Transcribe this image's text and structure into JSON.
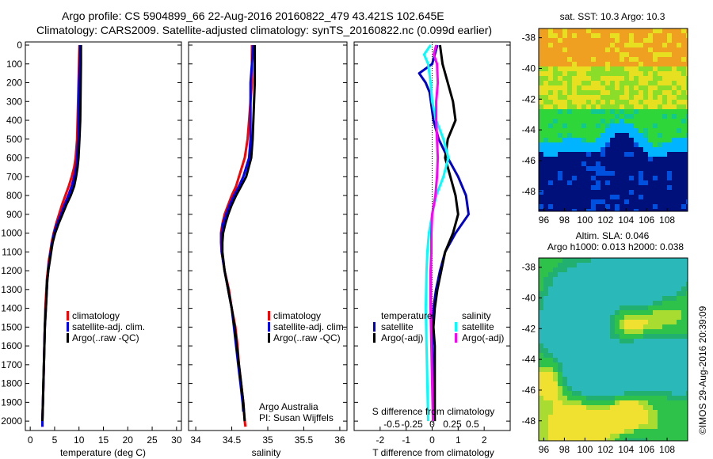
{
  "header": {
    "line1": "Argo profile: CS 5904899_66 22-Aug-2016 20160822_479 43.421S 102.645E",
    "line2": "Climatology: CARS2009. Satellite-adjusted climatology: synTS_20160822.nc (0.099d earlier)"
  },
  "chart_data": [
    {
      "type": "line",
      "name": "temperature-profile",
      "xlabel": "temperature (deg C)",
      "ylabel": "",
      "xlim": [
        -1,
        31
      ],
      "ylim": [
        2050,
        0
      ],
      "xticks": [
        0,
        5,
        10,
        15,
        20,
        25,
        30
      ],
      "yticks": [
        0,
        100,
        200,
        300,
        400,
        500,
        600,
        700,
        800,
        900,
        1000,
        1100,
        1200,
        1300,
        1400,
        1500,
        1600,
        1700,
        1800,
        1900,
        2000
      ],
      "legend": [
        "climatology",
        "satellite-adj. clim.",
        "Argo(..raw -QC)"
      ],
      "series": [
        {
          "name": "climatology",
          "color": "#ff0000",
          "depth": [
            0,
            100,
            200,
            300,
            400,
            500,
            600,
            650,
            700,
            750,
            800,
            850,
            900,
            950,
            1000,
            1050,
            1100,
            1150,
            1200,
            1250,
            1300,
            1400,
            1500,
            1600,
            1700,
            1800,
            1900,
            2000,
            2030
          ],
          "values": [
            10.1,
            10.0,
            9.9,
            9.8,
            9.7,
            9.6,
            9.3,
            9.0,
            8.5,
            7.9,
            7.2,
            6.5,
            5.9,
            5.3,
            4.8,
            4.4,
            4.1,
            3.8,
            3.6,
            3.4,
            3.3,
            3.1,
            3.0,
            2.9,
            2.8,
            2.7,
            2.6,
            2.5,
            2.5
          ]
        },
        {
          "name": "satellite-adj. clim.",
          "color": "#0000ff",
          "depth": [
            0,
            100,
            200,
            300,
            400,
            500,
            600,
            650,
            700,
            750,
            800,
            850,
            900,
            950,
            1000,
            1050,
            1100,
            1150,
            1200,
            1250,
            1300,
            1400,
            1500,
            1600,
            1700,
            1800,
            1900,
            2000,
            2030
          ],
          "values": [
            10.2,
            10.1,
            10.0,
            9.95,
            9.9,
            9.8,
            9.6,
            9.4,
            9.0,
            8.5,
            7.8,
            7.0,
            6.3,
            5.5,
            4.9,
            4.5,
            4.2,
            3.9,
            3.7,
            3.5,
            3.4,
            3.2,
            3.0,
            2.9,
            2.8,
            2.7,
            2.6,
            2.5,
            2.5
          ]
        },
        {
          "name": "Argo(..raw -QC)",
          "color": "#000000",
          "depth": [
            0,
            100,
            200,
            300,
            400,
            500,
            600,
            650,
            700,
            750,
            800,
            850,
            900,
            950,
            1000,
            1050,
            1100,
            1150,
            1200,
            1250,
            1300,
            1400,
            1500,
            1600,
            1700,
            1800,
            1900,
            2000
          ],
          "values": [
            10.4,
            10.4,
            10.35,
            10.3,
            10.25,
            10.1,
            9.9,
            9.7,
            9.4,
            9.0,
            8.3,
            7.4,
            6.6,
            5.8,
            5.1,
            4.6,
            4.3,
            4.0,
            3.7,
            3.5,
            3.4,
            3.2,
            3.0,
            2.9,
            2.8,
            2.7,
            2.6,
            2.5
          ]
        }
      ]
    },
    {
      "type": "line",
      "name": "salinity-profile",
      "xlabel": "salinity",
      "xlim": [
        33.9,
        36.1
      ],
      "ylim": [
        2050,
        0
      ],
      "xticks": [
        34,
        34.5,
        35,
        35.5,
        36
      ],
      "legend": [
        "climatology",
        "satellite-adj. clim.",
        "Argo(..raw -QC)"
      ],
      "annotation": [
        "Argo Australia",
        "PI: Susan Wijffels"
      ],
      "series": [
        {
          "name": "climatology",
          "color": "#ff0000",
          "depth": [
            0,
            100,
            200,
            300,
            400,
            500,
            600,
            700,
            750,
            800,
            850,
            900,
            950,
            1000,
            1050,
            1100,
            1200,
            1300,
            1400,
            1500,
            1600,
            1700,
            1800,
            1900,
            2000,
            2030
          ],
          "values": [
            34.78,
            34.78,
            34.78,
            34.76,
            34.74,
            34.72,
            34.68,
            34.6,
            34.56,
            34.5,
            34.45,
            34.4,
            34.37,
            34.35,
            34.35,
            34.36,
            34.4,
            34.46,
            34.5,
            34.55,
            34.58,
            34.6,
            34.63,
            34.66,
            34.68,
            34.69
          ]
        },
        {
          "name": "satellite-adj. clim.",
          "color": "#0000ff",
          "depth": [
            0,
            100,
            200,
            300,
            400,
            500,
            600,
            700,
            750,
            800,
            850,
            900,
            950,
            1000,
            1050,
            1100,
            1200,
            1300,
            1400,
            1500,
            1600,
            1700,
            1800,
            1900,
            1950
          ],
          "values": [
            34.8,
            34.78,
            34.76,
            34.76,
            34.76,
            34.76,
            34.74,
            34.66,
            34.6,
            34.53,
            34.47,
            34.42,
            34.38,
            34.36,
            34.36,
            34.36,
            34.4,
            34.45,
            34.5,
            34.53,
            34.56,
            34.59,
            34.62,
            34.65,
            34.66
          ]
        },
        {
          "name": "Argo(..raw -QC)",
          "color": "#000000",
          "depth": [
            0,
            100,
            200,
            300,
            400,
            500,
            600,
            700,
            750,
            800,
            850,
            900,
            950,
            1000,
            1050,
            1100,
            1200,
            1300,
            1400,
            1500,
            1600,
            1700,
            1800,
            1900,
            2000
          ],
          "values": [
            34.82,
            34.82,
            34.82,
            34.81,
            34.8,
            34.79,
            34.77,
            34.7,
            34.63,
            34.56,
            34.5,
            34.45,
            34.41,
            34.38,
            34.37,
            34.37,
            34.4,
            34.45,
            34.5,
            34.54,
            34.57,
            34.6,
            34.63,
            34.66,
            34.68
          ]
        }
      ]
    },
    {
      "type": "line",
      "name": "difference-profile",
      "xlabel": "T difference from climatology",
      "xlabel2": "S difference from climatology",
      "xlim": [
        -3,
        3
      ],
      "ylim": [
        2050,
        0
      ],
      "xticks": [
        -2,
        -1,
        0,
        1,
        2
      ],
      "xtick_labels": [
        "-2",
        "-1",
        "0",
        "1",
        "2"
      ],
      "xticks2": [
        -0.5,
        -0.25,
        0,
        0.25,
        0.5
      ],
      "xtick2_labels": [
        "-0.5",
        "-0.25",
        "0",
        "0.25",
        "0.5"
      ],
      "legend_temperature_title": "temperature",
      "legend_salinity_title": "salinity",
      "legend": [
        "satellite",
        "Argo(-adj)",
        "satellite",
        "Argo(-adj)"
      ],
      "series": [
        {
          "name": "satellite",
          "group": "temperature",
          "color": "#0000cc",
          "depth": [
            0,
            100,
            150,
            200,
            250,
            300,
            400,
            500,
            600,
            700,
            800,
            900,
            1000,
            1100,
            1200,
            1300,
            1400,
            1500,
            1600,
            1700,
            1800,
            1900,
            2000
          ],
          "values": [
            0.2,
            0.0,
            -0.5,
            -0.25,
            -0.1,
            -0.05,
            0.05,
            0.25,
            0.6,
            1.0,
            1.3,
            1.4,
            0.9,
            0.5,
            0.3,
            0.15,
            0.05,
            0.0,
            0.0,
            0.02,
            0.05,
            0.05,
            0.05
          ]
        },
        {
          "name": "Argo(-adj)",
          "group": "temperature",
          "color": "#000000",
          "depth": [
            0,
            100,
            200,
            300,
            400,
            500,
            600,
            700,
            800,
            900,
            1000,
            1100,
            1200,
            1300,
            1400,
            1500,
            1600,
            1700,
            1800,
            1900,
            2000
          ],
          "values": [
            0.3,
            0.4,
            0.6,
            0.8,
            0.9,
            0.6,
            0.5,
            0.7,
            0.9,
            1.0,
            0.8,
            0.5,
            0.35,
            0.2,
            0.1,
            0.05,
            0.1,
            0.1,
            0.1,
            0.1,
            0.1
          ]
        },
        {
          "name": "satellite",
          "group": "salinity",
          "color": "#00ffff",
          "depth": [
            0,
            50,
            100,
            200,
            300,
            400,
            500,
            600,
            700,
            800,
            900,
            1000,
            1100,
            1200,
            1400,
            1600,
            1800,
            2000
          ],
          "values": [
            -0.02,
            -0.1,
            -0.05,
            -0.02,
            0.0,
            0.05,
            0.14,
            0.2,
            0.14,
            0.05,
            0.0,
            -0.04,
            -0.06,
            -0.07,
            -0.08,
            -0.07,
            -0.06,
            -0.05
          ]
        },
        {
          "name": "Argo(-adj)",
          "group": "salinity",
          "color": "#ff00ff",
          "depth": [
            0,
            50,
            100,
            200,
            300,
            400,
            500,
            600,
            700,
            800,
            900,
            1000,
            1100,
            1200,
            1400,
            1600,
            1800,
            2000
          ],
          "values": [
            0.05,
            0.02,
            0.06,
            0.07,
            0.05,
            0.05,
            0.06,
            0.07,
            0.06,
            0.04,
            0.0,
            -0.01,
            -0.01,
            -0.02,
            -0.02,
            -0.01,
            0.0,
            0.01
          ]
        }
      ]
    },
    {
      "type": "heatmap",
      "name": "sst-map",
      "title": "sat. SST: 10.3 Argo: 10.3",
      "xlim": [
        95.5,
        110
      ],
      "ylim": [
        -49.3,
        -37.4
      ],
      "xticks": [
        96,
        98,
        100,
        102,
        104,
        106,
        108
      ],
      "yticks": [
        -38,
        -40,
        -42,
        -44,
        -46,
        -48
      ]
    },
    {
      "type": "heatmap",
      "name": "sla-map",
      "title": "Altim. SLA: 0.046",
      "subtitle": "Argo h1000: 0.013 h2000: 0.038",
      "xlim": [
        95.5,
        110
      ],
      "ylim": [
        -49.3,
        -37.4
      ],
      "xticks": [
        96,
        98,
        100,
        102,
        104,
        106,
        108
      ],
      "yticks": [
        -38,
        -40,
        -42,
        -44,
        -46,
        -48
      ]
    }
  ],
  "footer": {
    "credit": "©IMOS 29-Aug-2016 20:39:09"
  }
}
